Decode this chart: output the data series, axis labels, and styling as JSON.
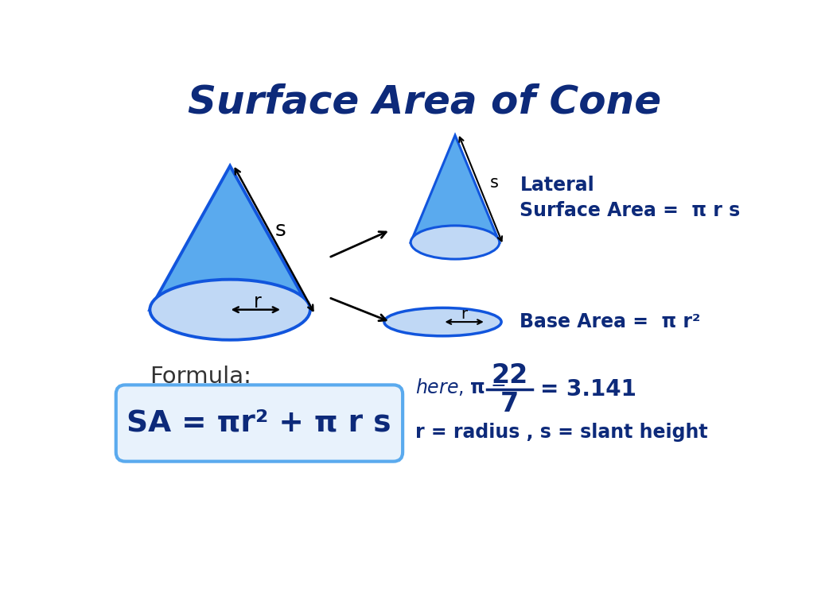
{
  "title": "Surface Area of Cone",
  "title_color": "#0d2a7a",
  "title_fontsize": 36,
  "bg_color": "#ffffff",
  "cone_fill": "#5aaaee",
  "cone_edge": "#1155dd",
  "ellipse_fill": "#c0d8f5",
  "ellipse_edge": "#1155dd",
  "dark_blue": "#0d2a7a",
  "formula_text": "SA = πr² + π r s",
  "formula_box_edge": "#5aaaee",
  "formula_box_fill": "#e8f2fc",
  "lateral_label": "Lateral\nSurface Area =  π r s",
  "base_label": "Base Area =  π r²",
  "radius_label": "r = radius , s = slant height",
  "formula_label": "Formula:"
}
